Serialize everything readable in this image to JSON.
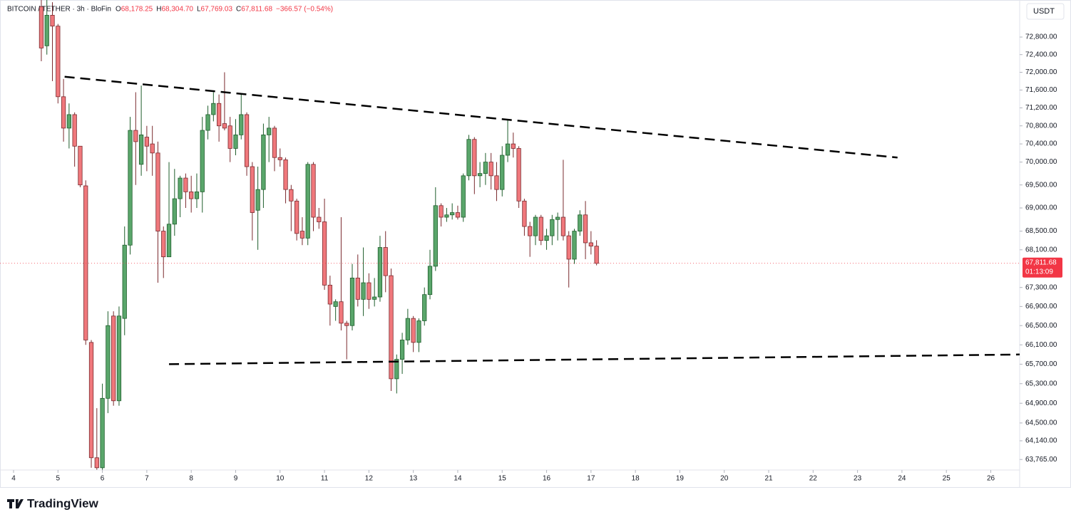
{
  "chart_data": {
    "type": "candlestick",
    "title": "BITCOIN / TETHER · 3h · BloFin",
    "ohlc_legend": [
      {
        "key": "O",
        "value": "68,178.25"
      },
      {
        "key": "H",
        "value": "68,304.70"
      },
      {
        "key": "L",
        "value": "67,769.03"
      },
      {
        "key": "C",
        "value": "67,811.68"
      }
    ],
    "change": "−366.57 (−0.54%)",
    "currency": "USDT",
    "brand": "TradingView",
    "up_color": "#5aa66b",
    "down_color": "#f0787c",
    "up_border": "#1f5e2c",
    "down_border": "#7a2a2e",
    "y_scale": "log",
    "ylim": [
      63555,
      73651
    ],
    "yticks": [
      {
        "value": 72800,
        "label": "72,800.00"
      },
      {
        "value": 72400,
        "label": "72,400.00"
      },
      {
        "value": 72000,
        "label": "72,000.00"
      },
      {
        "value": 71600,
        "label": "71,600.00"
      },
      {
        "value": 71200,
        "label": "71,200.00"
      },
      {
        "value": 70800,
        "label": "70,800.00"
      },
      {
        "value": 70400,
        "label": "70,400.00"
      },
      {
        "value": 70000,
        "label": "70,000.00"
      },
      {
        "value": 69500,
        "label": "69,500.00"
      },
      {
        "value": 69000,
        "label": "69,000.00"
      },
      {
        "value": 68500,
        "label": "68,500.00"
      },
      {
        "value": 68100,
        "label": "68,100.00"
      },
      {
        "value": 67300,
        "label": "67,300.00"
      },
      {
        "value": 66900,
        "label": "66,900.00"
      },
      {
        "value": 66500,
        "label": "66,500.00"
      },
      {
        "value": 66100,
        "label": "66,100.00"
      },
      {
        "value": 65700,
        "label": "65,700.00"
      },
      {
        "value": 65300,
        "label": "65,300.00"
      },
      {
        "value": 64900,
        "label": "64,900.00"
      },
      {
        "value": 64500,
        "label": "64,500.00"
      },
      {
        "value": 64140,
        "label": "64,140.00"
      },
      {
        "value": 63765,
        "label": "63,765.00"
      }
    ],
    "xlim": [
      3.695,
      26.65
    ],
    "xticks": [
      4,
      5,
      6,
      7,
      8,
      9,
      10,
      11,
      12,
      13,
      14,
      15,
      16,
      17,
      18,
      19,
      20,
      21,
      22,
      23,
      24,
      25,
      26
    ],
    "x": [
      4.625,
      4.75,
      4.875,
      5,
      5.125,
      5.25,
      5.375,
      5.5,
      5.625,
      5.75,
      5.875,
      6,
      6.125,
      6.25,
      6.375,
      6.5,
      6.625,
      6.75,
      6.875,
      7,
      7.125,
      7.25,
      7.375,
      7.5,
      7.625,
      7.75,
      7.875,
      8,
      8.125,
      8.25,
      8.375,
      8.5,
      8.625,
      8.75,
      8.875,
      9,
      9.125,
      9.25,
      9.375,
      9.5,
      9.625,
      9.75,
      9.875,
      10,
      10.125,
      10.25,
      10.375,
      10.5,
      10.625,
      10.75,
      10.875,
      11,
      11.125,
      11.25,
      11.375,
      11.5,
      11.625,
      11.75,
      11.875,
      12,
      12.125,
      12.25,
      12.375,
      12.5,
      12.625,
      12.75,
      12.875,
      13,
      13.125,
      13.25,
      13.375,
      13.5,
      13.625,
      13.75,
      13.875,
      14,
      14.125,
      14.25,
      14.375,
      14.5,
      14.625,
      14.75,
      14.875,
      15,
      15.125,
      15.25,
      15.375,
      15.5,
      15.625,
      15.75,
      15.875,
      16,
      16.125,
      16.25,
      16.375,
      16.5,
      16.625,
      16.75,
      16.875,
      17,
      17.125
    ],
    "open": [
      73500,
      72600,
      73300,
      73050,
      71450,
      70750,
      71050,
      70350,
      69480,
      66150,
      63800,
      63600,
      65000,
      66700,
      64950,
      66650,
      68200,
      70700,
      69950,
      70550,
      70400,
      70200,
      68500,
      67950,
      68650,
      69200,
      69650,
      69350,
      69200,
      69350,
      70700,
      71050,
      71300,
      70850,
      70800,
      70300,
      70600,
      71050,
      69900,
      68950,
      69400,
      70600,
      70750,
      70100,
      70050,
      69400,
      69150,
      68500,
      68350,
      69950,
      68800,
      68700,
      67350,
      66900,
      67000,
      66550,
      66500,
      67500,
      67050,
      67400,
      67050,
      67100,
      68150,
      67550,
      65400,
      65800,
      66200,
      66650,
      66150,
      66600,
      67150,
      67750,
      69050,
      68800,
      68850,
      68900,
      68800,
      69700,
      70500,
      69700,
      69750,
      70000,
      69700,
      69400,
      70150,
      70400,
      70300,
      69150,
      68600,
      68400,
      68800,
      68300,
      68400,
      68750,
      68800,
      68400,
      67900,
      68500,
      68850,
      68250,
      68178.25
    ],
    "high": [
      73650,
      73650,
      73600,
      73100,
      71850,
      71300,
      71100,
      70350,
      69600,
      66200,
      64800,
      65300,
      66800,
      66800,
      66900,
      68600,
      71000,
      71550,
      71700,
      70800,
      70800,
      70450,
      68600,
      70000,
      69850,
      69700,
      69750,
      69700,
      69750,
      71000,
      71250,
      71550,
      71500,
      72000,
      71000,
      70950,
      71500,
      71100,
      70000,
      69900,
      70850,
      71000,
      70800,
      70300,
      70100,
      69500,
      69200,
      68800,
      70000,
      70000,
      69000,
      69200,
      67550,
      67050,
      68800,
      66600,
      67800,
      68000,
      68150,
      67600,
      67500,
      68400,
      68500,
      67700,
      65900,
      66350,
      66850,
      66700,
      66650,
      67300,
      68100,
      69450,
      69100,
      69000,
      69100,
      69050,
      69750,
      70600,
      70550,
      70000,
      70200,
      70200,
      70000,
      70350,
      70950,
      70650,
      70350,
      69200,
      68700,
      68850,
      68850,
      68550,
      68850,
      68900,
      70050,
      68500,
      68550,
      68950,
      69150,
      68500,
      68304.7
    ],
    "low": [
      72250,
      72400,
      71800,
      71300,
      70450,
      70300,
      69900,
      69450,
      66100,
      63600,
      63560,
      63560,
      64700,
      64850,
      64850,
      66300,
      68000,
      69500,
      69700,
      69800,
      69700,
      67400,
      67500,
      67950,
      68400,
      68800,
      69000,
      68900,
      69000,
      68900,
      70500,
      70900,
      70450,
      70700,
      70000,
      70150,
      70500,
      69700,
      68300,
      68100,
      69000,
      70000,
      69800,
      69900,
      69100,
      68500,
      68300,
      68200,
      68200,
      68500,
      68550,
      67250,
      66500,
      66600,
      66400,
      65800,
      66400,
      66900,
      66700,
      66850,
      66900,
      67000,
      67200,
      65150,
      65100,
      65500,
      66100,
      65950,
      65950,
      66500,
      67050,
      67650,
      68600,
      68700,
      68750,
      68750,
      68700,
      69600,
      69300,
      69450,
      69500,
      69400,
      69150,
      69250,
      70000,
      70100,
      69000,
      68400,
      67950,
      68200,
      68200,
      68100,
      68200,
      68300,
      68300,
      67300,
      67800,
      68400,
      67900,
      68000,
      67769.03
    ],
    "close": [
      72550,
      73300,
      73050,
      71450,
      70750,
      71050,
      70350,
      69500,
      66200,
      63800,
      63600,
      65000,
      66500,
      64950,
      66700,
      68200,
      70700,
      70450,
      70600,
      70350,
      70200,
      68500,
      67950,
      68650,
      69200,
      69650,
      69350,
      69200,
      69350,
      70700,
      71050,
      71300,
      70800,
      70750,
      70300,
      70600,
      71050,
      69900,
      68900,
      69400,
      70600,
      70750,
      70100,
      70050,
      69400,
      69150,
      68450,
      68350,
      69950,
      68800,
      68700,
      67350,
      66950,
      67000,
      66550,
      66500,
      67500,
      67050,
      67400,
      67050,
      67100,
      68150,
      67550,
      65400,
      65800,
      66200,
      66650,
      66150,
      66600,
      67150,
      67750,
      69050,
      68800,
      68850,
      68900,
      68800,
      69700,
      70500,
      69700,
      69750,
      70000,
      69700,
      69400,
      70150,
      70400,
      70300,
      69150,
      68600,
      68400,
      68800,
      68300,
      68400,
      68750,
      68800,
      68400,
      67900,
      68500,
      68850,
      68250,
      68180,
      67811.68
    ],
    "last_price": {
      "value": 67811.68,
      "label": "67,811.68"
    },
    "countdown": "01:13:09",
    "trendlines": [
      {
        "x": [
          5.15,
          23.9
        ],
        "y": [
          71900,
          70100
        ]
      },
      {
        "x": [
          7.5,
          26.65
        ],
        "y": [
          65700,
          65900
        ]
      }
    ]
  }
}
